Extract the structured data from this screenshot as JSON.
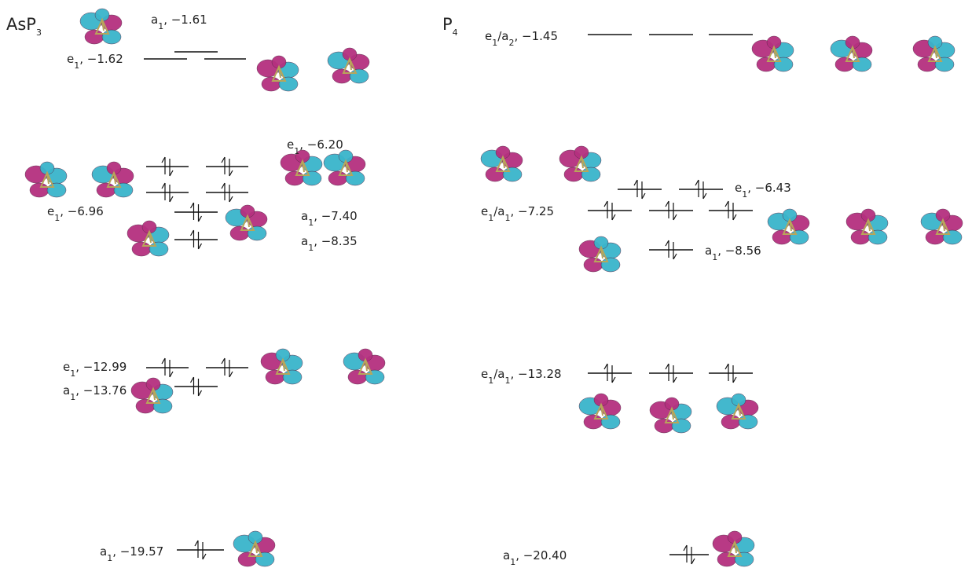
{
  "panels": [
    {
      "title": [
        {
          "t": "AsP"
        },
        {
          "t": "3",
          "sub": true
        }
      ],
      "levels": [
        {
          "label": [
            {
              "t": "a"
            },
            {
              "t": "1",
              "sub": true
            },
            {
              "t": ", −1.61"
            }
          ],
          "occupied": false
        },
        {
          "label": [
            {
              "t": "e"
            },
            {
              "t": "1",
              "sub": true
            },
            {
              "t": ", −1.62"
            }
          ],
          "occupied": false
        },
        {
          "label": [
            {
              "t": "e"
            },
            {
              "t": "1",
              "sub": true
            },
            {
              "t": ", −6.20"
            }
          ],
          "occupied": true
        },
        {
          "label": [
            {
              "t": "e"
            },
            {
              "t": "1",
              "sub": true
            },
            {
              "t": ", −6.96"
            }
          ],
          "occupied": true
        },
        {
          "label": [
            {
              "t": "a"
            },
            {
              "t": "1",
              "sub": true
            },
            {
              "t": ", −7.40"
            }
          ],
          "occupied": true
        },
        {
          "label": [
            {
              "t": "a"
            },
            {
              "t": "1",
              "sub": true
            },
            {
              "t": ", −8.35"
            }
          ],
          "occupied": true
        },
        {
          "label": [
            {
              "t": "e"
            },
            {
              "t": "1",
              "sub": true
            },
            {
              "t": ", −12.99"
            }
          ],
          "occupied": true
        },
        {
          "label": [
            {
              "t": "a"
            },
            {
              "t": "1",
              "sub": true
            },
            {
              "t": ", −13.76"
            }
          ],
          "occupied": true
        },
        {
          "label": [
            {
              "t": "a"
            },
            {
              "t": "1",
              "sub": true
            },
            {
              "t": ", −19.57"
            }
          ],
          "occupied": true
        }
      ]
    },
    {
      "title": [
        {
          "t": "P"
        },
        {
          "t": "4",
          "sub": true
        }
      ],
      "levels": [
        {
          "label": [
            {
              "t": "e"
            },
            {
              "t": "1",
              "sub": true
            },
            {
              "t": "/"
            },
            {
              "t": "a"
            },
            {
              "t": "2",
              "sub": true
            },
            {
              "t": ", −1.45"
            }
          ],
          "occupied": false
        },
        {
          "label": [
            {
              "t": "e"
            },
            {
              "t": "1",
              "sub": true
            },
            {
              "t": ", −6.43"
            }
          ],
          "occupied": true
        },
        {
          "label": [
            {
              "t": "e"
            },
            {
              "t": "1",
              "sub": true
            },
            {
              "t": "/"
            },
            {
              "t": "a"
            },
            {
              "t": "1",
              "sub": true
            },
            {
              "t": ", −7.25"
            }
          ],
          "occupied": true
        },
        {
          "label": [
            {
              "t": "a"
            },
            {
              "t": "1",
              "sub": true
            },
            {
              "t": ", −8.56"
            }
          ],
          "occupied": true
        },
        {
          "label": [
            {
              "t": "e"
            },
            {
              "t": "1",
              "sub": true
            },
            {
              "t": "/"
            },
            {
              "t": "a"
            },
            {
              "t": "1",
              "sub": true
            },
            {
              "t": ", −13.28"
            }
          ],
          "occupied": true
        },
        {
          "label": [
            {
              "t": "a"
            },
            {
              "t": "1",
              "sub": true
            },
            {
              "t": ", −20.40"
            }
          ],
          "occupied": true
        }
      ]
    }
  ]
}
